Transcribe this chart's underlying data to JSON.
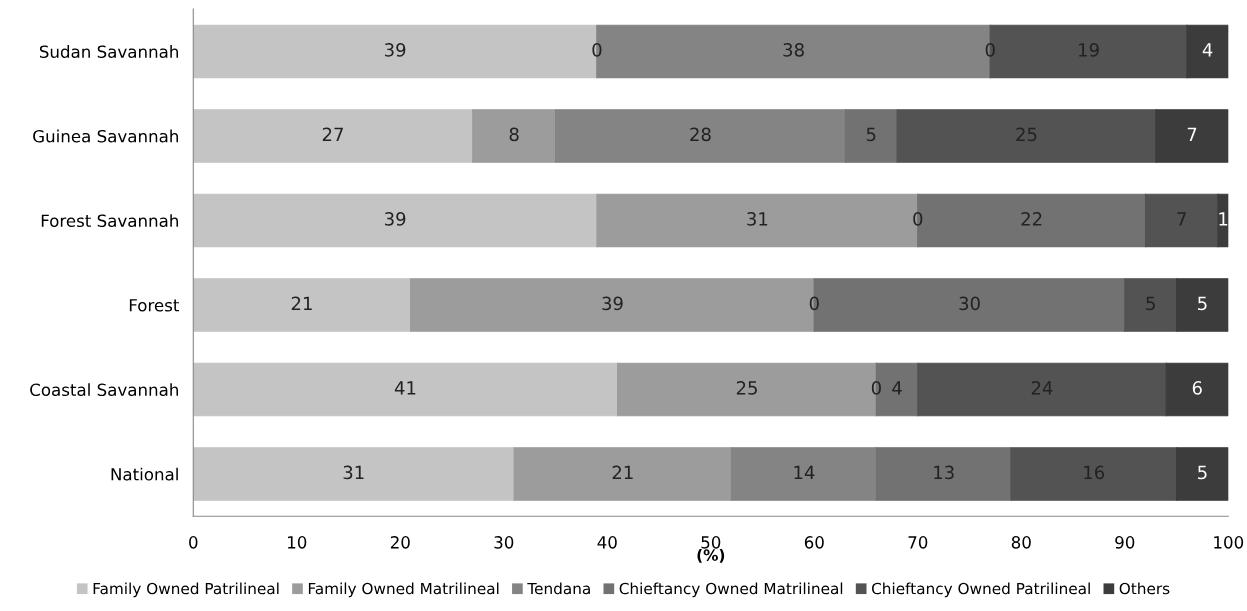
{
  "chart_data": {
    "type": "bar",
    "orientation": "horizontal",
    "stacked": true,
    "xlabel": "(%)",
    "categories": [
      "Sudan Savannah",
      "Guinea Savannah",
      "Forest Savannah",
      "Forest",
      "Coastal Savannah",
      "National"
    ],
    "series": [
      {
        "name": "Family Owned Patrilineal",
        "color": "#c4c4c4",
        "values": [
          39,
          27,
          39,
          21,
          41,
          31
        ]
      },
      {
        "name": "Family Owned Matrilineal",
        "color": "#9c9c9c",
        "values": [
          0,
          8,
          31,
          39,
          25,
          21
        ]
      },
      {
        "name": "Tendana",
        "color": "#848484",
        "values": [
          38,
          28,
          0,
          0,
          0,
          14
        ]
      },
      {
        "name": "Chieftancy Owned Matrilineal",
        "color": "#727272",
        "values": [
          0,
          5,
          22,
          30,
          4,
          13
        ]
      },
      {
        "name": "Chieftancy Owned Patrilineal",
        "color": "#535353",
        "values": [
          19,
          25,
          7,
          5,
          24,
          16
        ]
      },
      {
        "name": "Others",
        "color": "#3c3c3c",
        "values": [
          4,
          7,
          1,
          5,
          6,
          5
        ]
      }
    ],
    "xlim": [
      0,
      100
    ],
    "xticks": [
      0,
      10,
      20,
      30,
      40,
      50,
      60,
      70,
      80,
      90,
      100
    ],
    "data_labels": true,
    "grid": false,
    "legend": "bottom"
  }
}
